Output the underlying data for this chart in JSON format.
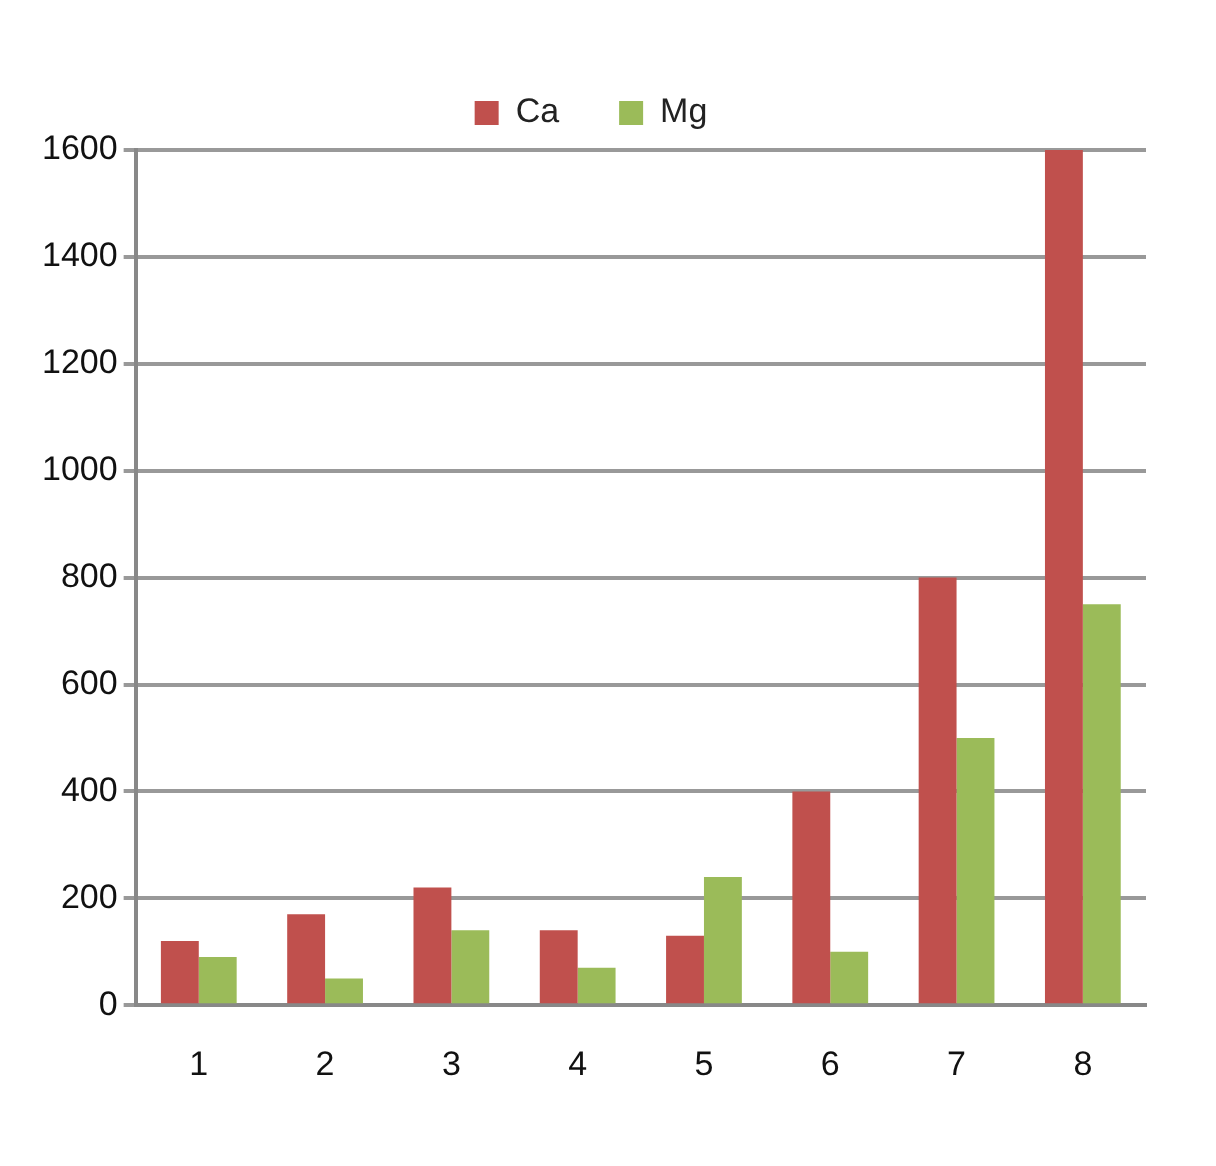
{
  "chart_data": {
    "type": "bar",
    "categories": [
      "1",
      "2",
      "3",
      "4",
      "5",
      "6",
      "7",
      "8"
    ],
    "series": [
      {
        "name": "Ca",
        "color": "#c0504d",
        "values": [
          120,
          170,
          220,
          140,
          130,
          400,
          800,
          1600
        ]
      },
      {
        "name": "Mg",
        "color": "#9bbb59",
        "values": [
          90,
          50,
          140,
          70,
          240,
          100,
          500,
          750
        ]
      }
    ],
    "ylim": [
      0,
      1600
    ],
    "yticks": [
      0,
      200,
      400,
      600,
      800,
      1000,
      1200,
      1400,
      1600
    ],
    "grid": "y",
    "legend": "top"
  }
}
